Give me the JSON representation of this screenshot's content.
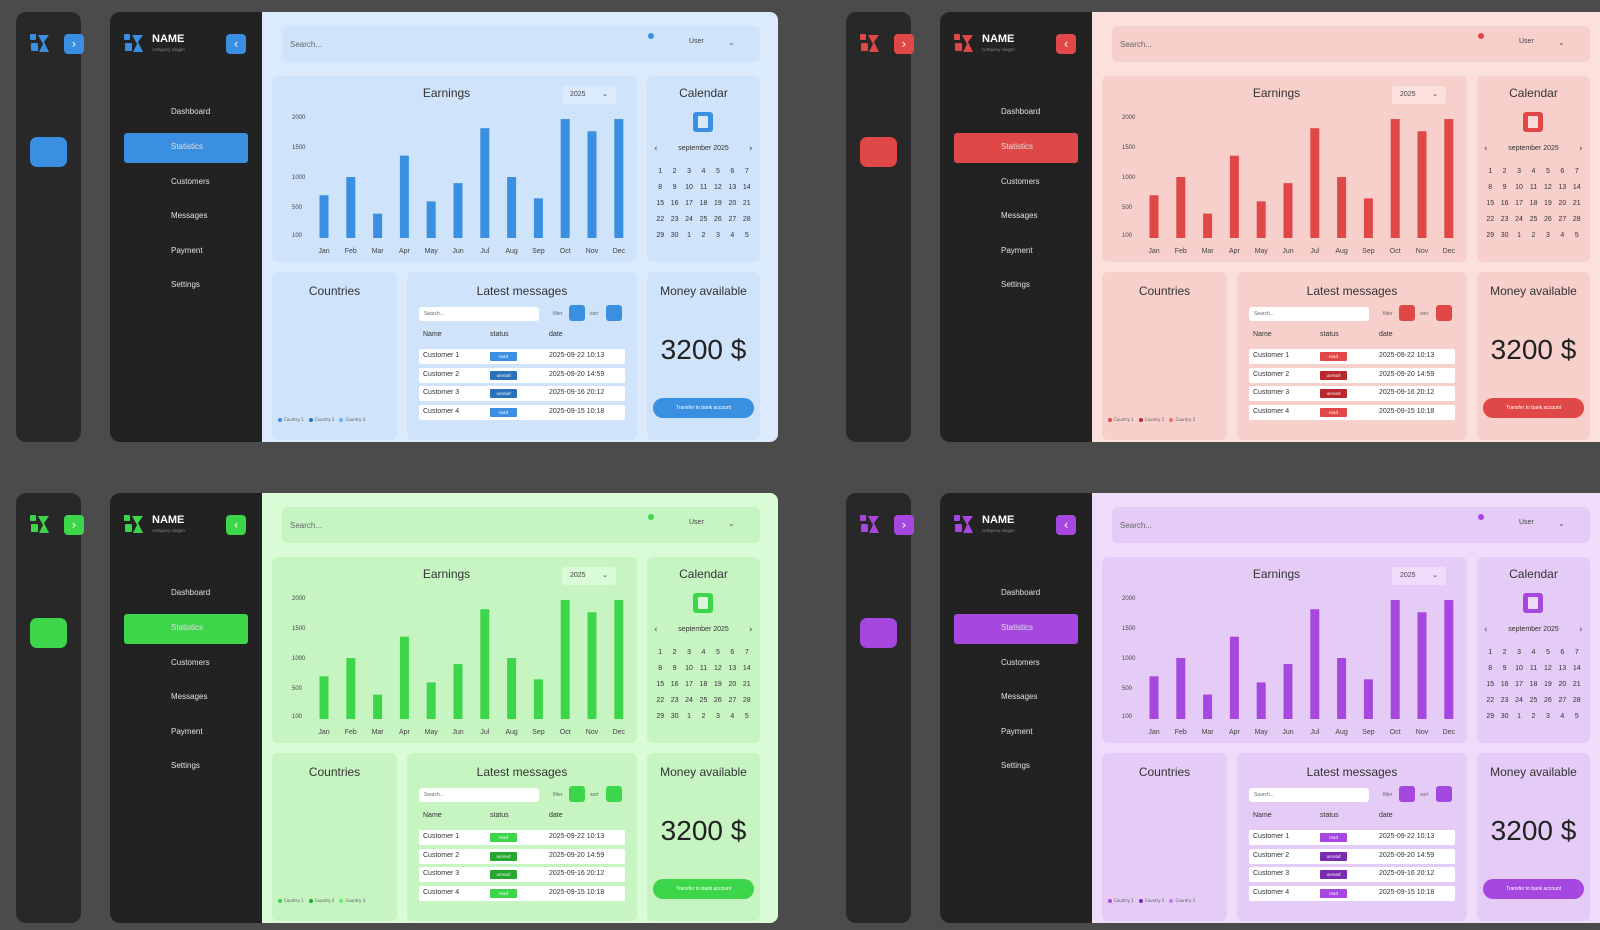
{
  "brand": {
    "name": "NAME",
    "subtitle": "company slogan"
  },
  "nav": [
    {
      "icon": "dashboard-icon",
      "label": "Dashboard"
    },
    {
      "icon": "statistics-icon",
      "label": "Statistics",
      "active": true
    },
    {
      "icon": "customers-icon",
      "label": "Customers"
    },
    {
      "icon": "messages-icon",
      "label": "Messages"
    },
    {
      "icon": "payment-icon",
      "label": "Payment"
    },
    {
      "icon": "settings-icon",
      "label": "Settings"
    }
  ],
  "header": {
    "search_placeholder": "Search...",
    "user": "User"
  },
  "earnings": {
    "title": "Earnings",
    "year": "2025"
  },
  "chart_data": {
    "type": "bar",
    "title": "Earnings",
    "categories": [
      "Jan",
      "Feb",
      "Mar",
      "Apr",
      "May",
      "Jun",
      "Jul",
      "Aug",
      "Sep",
      "Oct",
      "Nov",
      "Dec"
    ],
    "values": [
      700,
      1000,
      400,
      1350,
      600,
      900,
      1800,
      1000,
      650,
      1950,
      1750,
      1950
    ],
    "yticks": [
      "2000",
      "1500",
      "1000",
      "500",
      "100"
    ],
    "ylim": [
      0,
      2000
    ],
    "grid": false
  },
  "calendar": {
    "title": "Calendar",
    "month": "september 2025",
    "days": [
      "1",
      "2",
      "3",
      "4",
      "5",
      "6",
      "7",
      "8",
      "9",
      "10",
      "11",
      "12",
      "13",
      "14",
      "15",
      "16",
      "17",
      "18",
      "19",
      "20",
      "21",
      "22",
      "23",
      "24",
      "25",
      "26",
      "27",
      "28",
      "29",
      "30",
      "1",
      "2",
      "3",
      "4",
      "5"
    ]
  },
  "countries": {
    "title": "Countries",
    "legend": [
      "Country 1",
      "Country 2",
      "Country 3"
    ]
  },
  "messages": {
    "title": "Latest messages",
    "search_placeholder": "Search...",
    "filter_label": "filter",
    "sort_label": "sort",
    "columns": [
      "Name",
      "status",
      "date"
    ],
    "rows": [
      {
        "name": "Customer 1",
        "status": "read",
        "date": "2025-09-22 10:13"
      },
      {
        "name": "Customer 2",
        "status": "unread",
        "date": "2025-09-20 14:59"
      },
      {
        "name": "Customer 3",
        "status": "unread",
        "date": "2025-09-16 20:12"
      },
      {
        "name": "Customer 4",
        "status": "read",
        "date": "2025-09-15 10:18"
      }
    ]
  },
  "money": {
    "title": "Money available",
    "amount": "3200 $",
    "button": "Transfer to bank account"
  },
  "themes": [
    {
      "accent": "#3a8fe0",
      "main_bg": "#dbeafc",
      "card_bg": "#cfe3fa",
      "donut_dark": "#2b72b8",
      "donut_light": "#6fb2f0"
    },
    {
      "accent": "#e04848",
      "main_bg": "#fbe0dc",
      "card_bg": "#f8d0cb",
      "donut_dark": "#b8282c",
      "donut_light": "#ee7070"
    },
    {
      "accent": "#3dd64a",
      "main_bg": "#d9fbd6",
      "card_bg": "#c6f5c2",
      "donut_dark": "#24a830",
      "donut_light": "#70e878"
    },
    {
      "accent": "#a648e0",
      "main_bg": "#efdcfb",
      "card_bg": "#e5ccf6",
      "donut_dark": "#7a2cb0",
      "donut_light": "#c67cf0"
    }
  ]
}
